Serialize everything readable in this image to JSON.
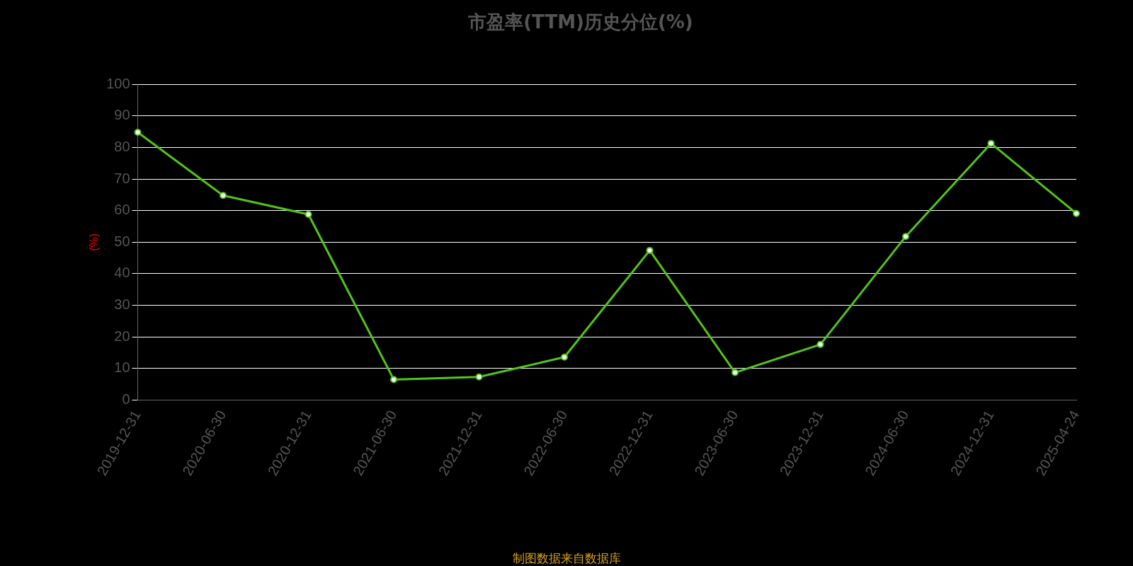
{
  "chart_data": {
    "type": "line",
    "title": "市盈率(TTM)历史分位(%)",
    "ylabel": "(%)",
    "categories": [
      "2019-12-31",
      "2020-06-30",
      "2020-12-31",
      "2021-06-30",
      "2021-12-31",
      "2022-06-30",
      "2022-12-31",
      "2023-06-30",
      "2023-12-31",
      "2024-06-30",
      "2024-12-31",
      "2025-04-24"
    ],
    "series": [
      {
        "color": "#52c41a",
        "values": [
          84.8,
          64.8,
          58.8,
          6.5,
          7.3,
          13.6,
          47.4,
          8.7,
          17.6,
          51.8,
          81.3,
          59.1
        ]
      }
    ],
    "ylim": [
      0,
      100
    ],
    "yticks": [
      0,
      10,
      20,
      30,
      40,
      50,
      60,
      70,
      80,
      90,
      100
    ],
    "grid": "y",
    "legend": false,
    "marker": "circle",
    "line_style": "solid",
    "annotations": [
      "制图数据来自数据库"
    ]
  }
}
